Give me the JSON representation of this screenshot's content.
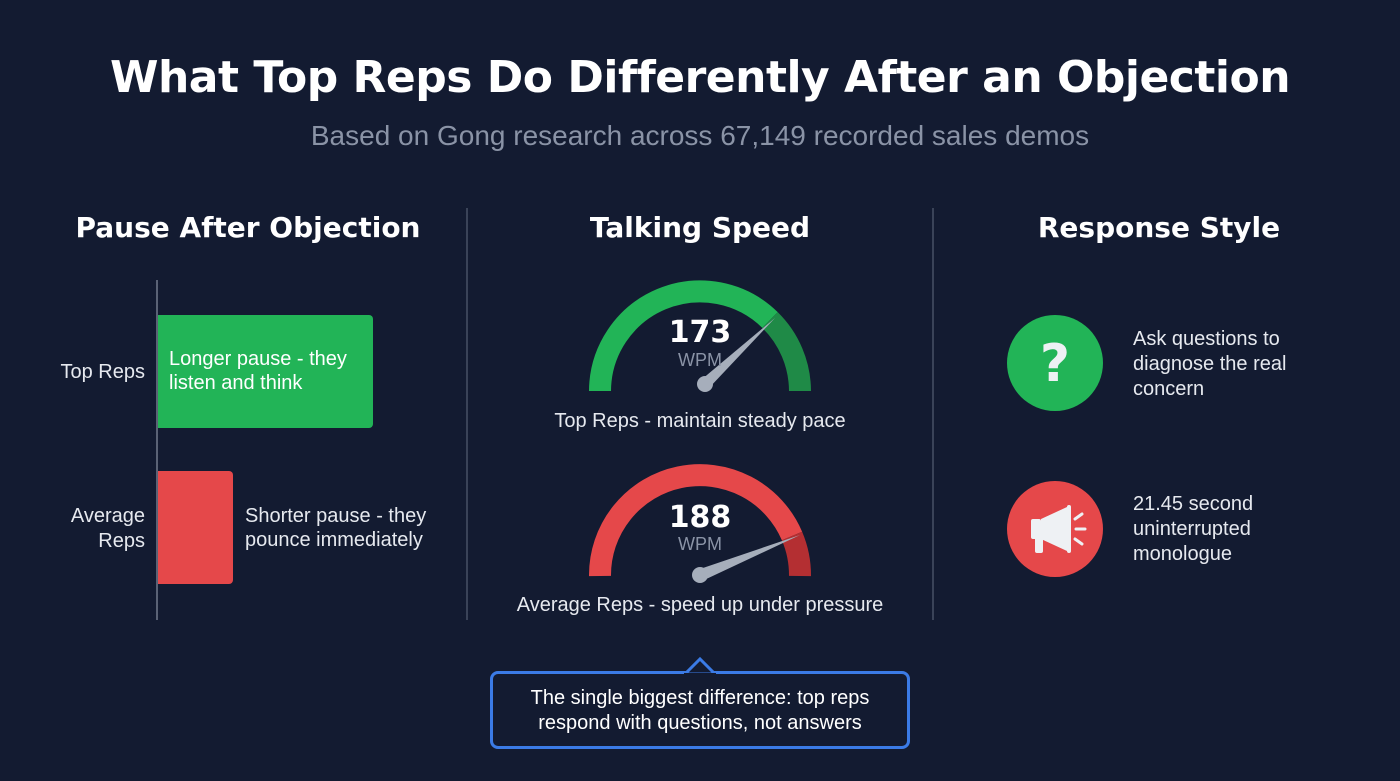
{
  "title": "What Top Reps Do Differently After an Objection",
  "subtitle": "Based on Gong research across 67,149 recorded sales demos",
  "colors": {
    "green": "#22b457",
    "red": "#e5484a",
    "accent": "#3b7be6",
    "background": "#131b31"
  },
  "pause": {
    "heading": "Pause After Objection",
    "top_label": "Top Reps",
    "top_text": "Longer pause - they listen and think",
    "avg_label": "Average Reps",
    "avg_text": "Shorter pause - they pounce immediately"
  },
  "speed": {
    "heading": "Talking Speed",
    "top": {
      "value": "173",
      "unit": "WPM",
      "caption": "Top Reps - maintain steady pace"
    },
    "avg": {
      "value": "188",
      "unit": "WPM",
      "caption": "Average Reps - speed up under pressure"
    }
  },
  "style": {
    "heading": "Response Style",
    "items": [
      {
        "icon": "question-icon",
        "text": "Ask questions to diagnose the real concern"
      },
      {
        "icon": "megaphone-icon",
        "text": "21.45 second uninterrupted monologue"
      }
    ]
  },
  "callout": "The single biggest difference: top reps respond with questions, not answers"
}
